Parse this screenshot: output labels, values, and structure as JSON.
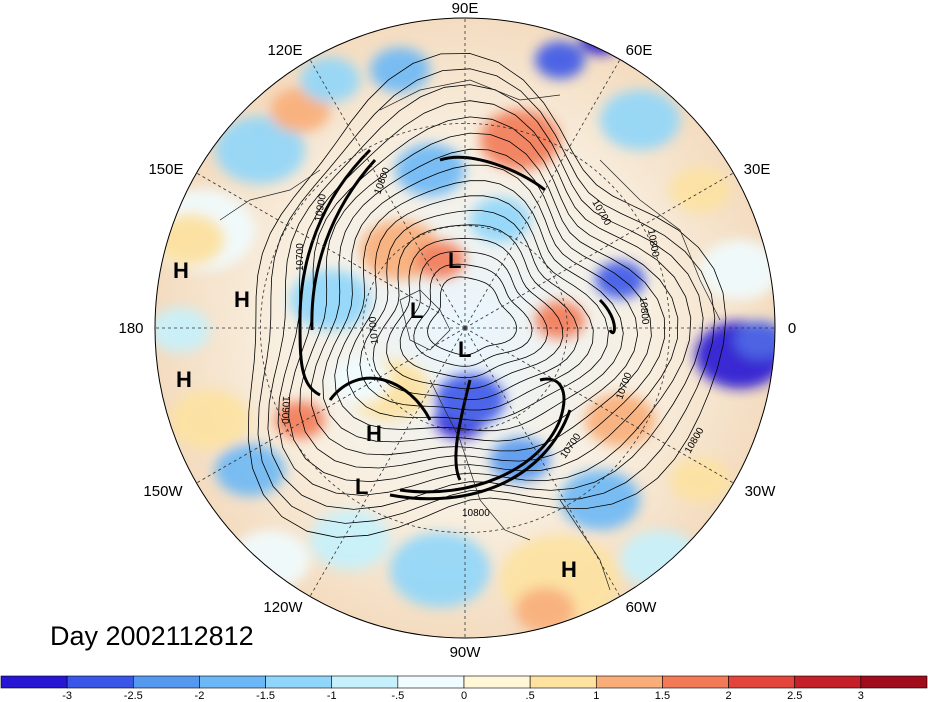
{
  "title": "Day 2002112812",
  "longitude_labels": [
    "90E",
    "60E",
    "30E",
    "0",
    "30W",
    "60W",
    "90W",
    "120W",
    "150W",
    "180",
    "150E",
    "120E"
  ],
  "pressure_centers": [
    "L",
    "L",
    "L",
    "L",
    "H",
    "H",
    "H",
    "H",
    "H"
  ],
  "contour_labels": [
    "10900",
    "10700",
    "10800",
    "10800",
    "10700",
    "10800",
    "10700",
    "10800",
    "10800",
    "10900",
    "10700",
    "10700"
  ],
  "colorbar": {
    "ticks": [
      "-3",
      "-2.5",
      "-2",
      "-1.5",
      "-1",
      "-.5",
      "0",
      ".5",
      "1",
      "1.5",
      "2",
      "2.5",
      "3"
    ],
    "colors": [
      "#2616d4",
      "#3a56e8",
      "#5598f0",
      "#6cb8f6",
      "#8fd6fa",
      "#c6f1fc",
      "#f0fcff",
      "#fff7d8",
      "#fde2a0",
      "#f9ad78",
      "#f27a57",
      "#e3443c",
      "#c51f2a",
      "#a10c1c"
    ]
  }
}
